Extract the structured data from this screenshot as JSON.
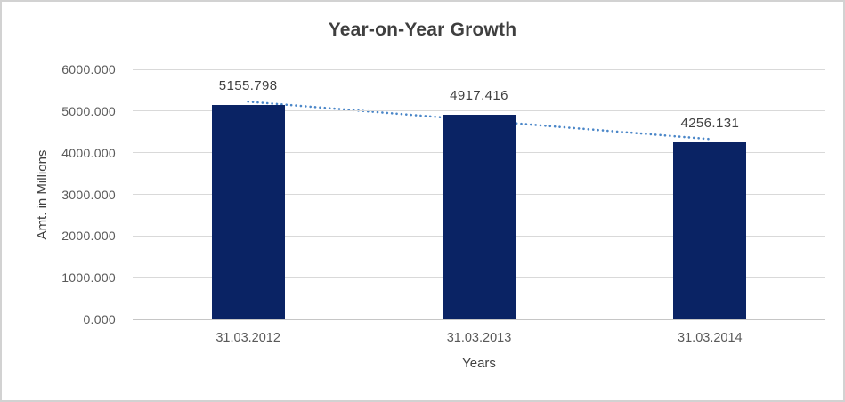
{
  "chart_data": {
    "type": "bar",
    "title": "Year-on-Year Growth",
    "categories": [
      "31.03.2012",
      "31.03.2013",
      "31.03.2014"
    ],
    "values": [
      5155.798,
      4917.416,
      4256.131
    ],
    "data_labels": [
      "5155.798",
      "4917.416",
      "4256.131"
    ],
    "xlabel": "Years",
    "ylabel": "Amt. in Millions",
    "ylim": [
      0,
      6000
    ],
    "ytick_step": 1000,
    "ytick_labels": [
      "0.000",
      "1000.000",
      "2000.000",
      "3000.000",
      "4000.000",
      "5000.000",
      "6000.000"
    ],
    "grid": true,
    "legend": "none",
    "bar_color": "#0a2364",
    "gridline_color": "#d9d9d9",
    "axis_line_color": "#c6c6c6",
    "text_color": "#595959",
    "label_color": "#404040",
    "trendline": {
      "type": "linear",
      "style": "dotted",
      "color": "#4a86c8"
    }
  }
}
